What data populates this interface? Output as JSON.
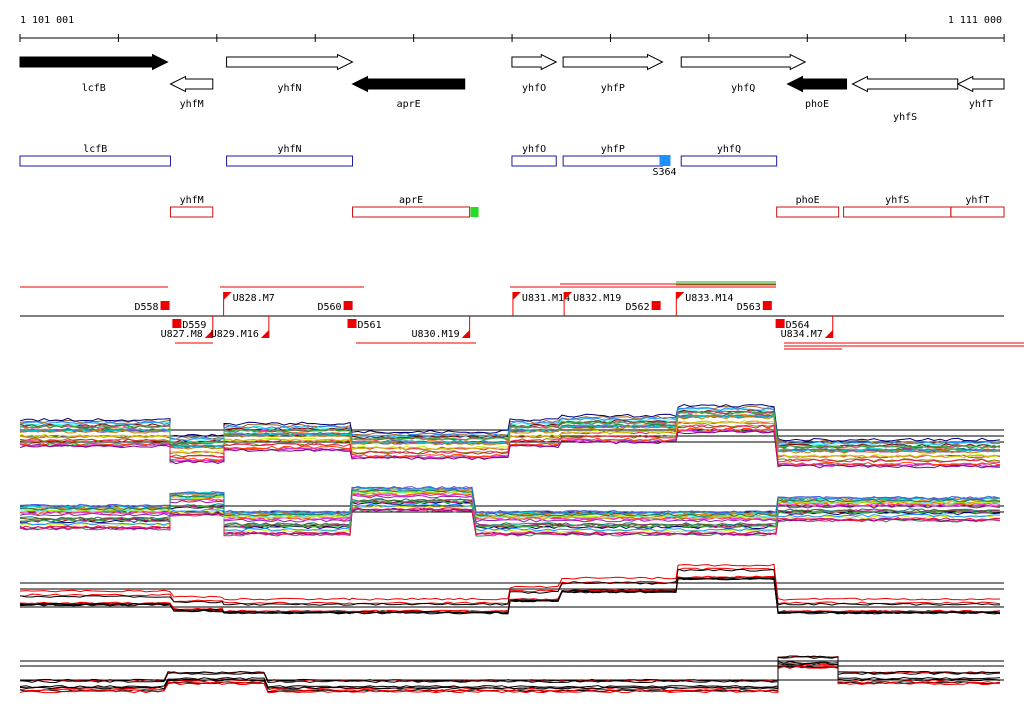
{
  "coordinates": {
    "start": "1 101 001",
    "end": "1 111 000",
    "first_bp": 1101001,
    "last_bp": 1111000
  },
  "colors": {
    "gene_fill_plus": "#ffffff",
    "gene_fill_minus": "#000000",
    "plus_box": "#1a1aa8",
    "minus_box": "#cc1111",
    "start_site": "#1e90ff",
    "term_site": "#22dd22",
    "feature_red": "#ee0000",
    "feature_green": "#22aa22"
  },
  "genes": [
    {
      "name": "lcfB",
      "start": 1101001,
      "end": 1102500,
      "strand": "+",
      "fill": "black"
    },
    {
      "name": "yhfM",
      "start": 1102530,
      "end": 1102960,
      "strand": "-",
      "fill": "white"
    },
    {
      "name": "yhfN",
      "start": 1103100,
      "end": 1104380,
      "strand": "+",
      "fill": "white"
    },
    {
      "name": "aprE",
      "start": 1104380,
      "end": 1105520,
      "strand": "-",
      "fill": "black"
    },
    {
      "name": "yhfO",
      "start": 1106000,
      "end": 1106450,
      "strand": "+",
      "fill": "white"
    },
    {
      "name": "yhfP",
      "start": 1106520,
      "end": 1107530,
      "strand": "+",
      "fill": "white"
    },
    {
      "name": "yhfQ",
      "start": 1107720,
      "end": 1108980,
      "strand": "+",
      "fill": "white"
    },
    {
      "name": "phoE",
      "start": 1108800,
      "end": 1109400,
      "strand": "-",
      "fill": "black"
    },
    {
      "name": "yhfS",
      "start": 1109460,
      "end": 1110530,
      "strand": "-",
      "fill": "white"
    },
    {
      "name": "yhfT",
      "start": 1110530,
      "end": 1111000,
      "strand": "-",
      "fill": "white"
    }
  ],
  "plus_boxes": [
    {
      "name": "lcfB",
      "start": 1101001,
      "end": 1102530
    },
    {
      "name": "yhfN",
      "start": 1103100,
      "end": 1104380
    },
    {
      "name": "yhfO",
      "start": 1106000,
      "end": 1106450
    },
    {
      "name": "yhfP",
      "start": 1106520,
      "end": 1107530
    },
    {
      "name": "yhfQ",
      "start": 1107720,
      "end": 1108690
    }
  ],
  "minus_boxes": [
    {
      "name": "yhfM",
      "start": 1102530,
      "end": 1102960
    },
    {
      "name": "aprE",
      "start": 1104380,
      "end": 1105570
    },
    {
      "name": "phoE",
      "start": 1108690,
      "end": 1109320
    },
    {
      "name": "yhfS",
      "start": 1109370,
      "end": 1110460
    },
    {
      "name": "yhfT",
      "start": 1110460,
      "end": 1111000
    }
  ],
  "start_sites": [
    {
      "label": "S364",
      "pos": 1107550
    }
  ],
  "term_sites": [
    {
      "pos": 1105620
    }
  ],
  "upstream_features": [
    {
      "label": "U828.M7",
      "start": 1103070,
      "end": 1104550
    },
    {
      "label": "U831.M14",
      "start": 1106010,
      "end": 1106530
    },
    {
      "label": "U832.M19",
      "start": 1106530,
      "end": 1107180
    },
    {
      "label": "U833.M14",
      "start": 1107670,
      "end": 1108280
    }
  ],
  "downstream_above": [
    {
      "label": "D558",
      "pos": 1102480
    },
    {
      "label": "D560",
      "pos": 1104340
    },
    {
      "label": "D562",
      "pos": 1107470
    },
    {
      "label": "D563",
      "pos": 1108600
    }
  ],
  "downstream_below": [
    {
      "label": "D559",
      "pos": 1102600
    },
    {
      "label": "D561",
      "pos": 1104380
    },
    {
      "label": "D564",
      "pos": 1108730
    }
  ],
  "upstream_below": [
    {
      "label": "U827.M8",
      "pos": 1102960
    },
    {
      "label": "U829.M16",
      "pos": 1103530
    },
    {
      "label": "U830.M19",
      "pos": 1105570
    },
    {
      "label": "U834.M7",
      "pos": 1109260
    }
  ]
}
